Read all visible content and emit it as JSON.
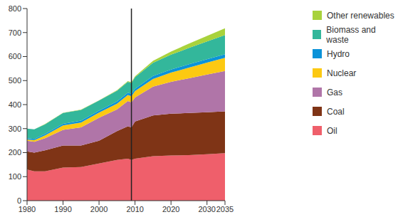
{
  "chart_data": {
    "type": "area",
    "stacked": true,
    "grid": false,
    "legend": "right",
    "x": [
      1980,
      1982,
      1985,
      1990,
      1995,
      2000,
      2005,
      2008,
      2009,
      2010,
      2015,
      2020,
      2025,
      2030,
      2035
    ],
    "xlim": [
      1980,
      2035
    ],
    "xticks": [
      1980,
      1990,
      2000,
      2010,
      2020,
      2030,
      2035
    ],
    "ylim": [
      0,
      800
    ],
    "yticks": [
      0,
      100,
      200,
      300,
      400,
      500,
      600,
      700,
      800
    ],
    "reference_x": 2009,
    "series": [
      {
        "name": "Oil",
        "color": "#ef5f6b",
        "values": [
          130,
          122,
          122,
          138,
          140,
          155,
          170,
          175,
          170,
          175,
          185,
          188,
          190,
          193,
          198
        ]
      },
      {
        "name": "Coal",
        "color": "#7f3416",
        "values": [
          75,
          78,
          88,
          92,
          90,
          95,
          120,
          135,
          135,
          155,
          170,
          174,
          175,
          175,
          174
        ]
      },
      {
        "name": "Gas",
        "color": "#b075a8",
        "values": [
          45,
          45,
          50,
          65,
          75,
          95,
          90,
          105,
          105,
          100,
          120,
          133,
          145,
          157,
          168
        ]
      },
      {
        "name": "Nuclear",
        "color": "#fcc912",
        "values": [
          5,
          7,
          12,
          18,
          20,
          22,
          24,
          25,
          25,
          26,
          32,
          38,
          44,
          50,
          55
        ]
      },
      {
        "name": "Hydro",
        "color": "#0b93d9",
        "values": [
          5,
          5,
          6,
          7,
          8,
          8,
          9,
          10,
          10,
          10,
          12,
          13,
          14,
          14,
          15
        ]
      },
      {
        "name": "Biomass and waste",
        "color": "#33b79b",
        "values": [
          40,
          40,
          40,
          45,
          45,
          42,
          45,
          45,
          45,
          48,
          55,
          62,
          68,
          74,
          80
        ]
      },
      {
        "name": "Other renewables",
        "color": "#a8d23c",
        "values": [
          0,
          0,
          1,
          1,
          1,
          1,
          2,
          3,
          3,
          4,
          8,
          13,
          18,
          23,
          28
        ]
      }
    ]
  }
}
